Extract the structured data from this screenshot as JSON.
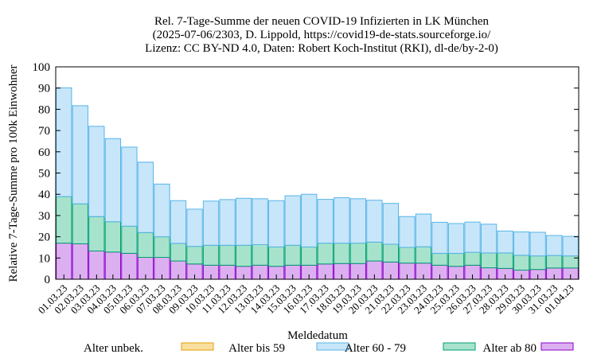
{
  "chart_data": {
    "type": "bar",
    "stacked": true,
    "title_lines": [
      "Rel. 7-Tage-Summe der neuen COVID-19 Infizierten in LK München",
      "(2025-07-06/2303, D. Lippold, https://covid19-de-stats.sourceforge.io/",
      "Lizenz: CC BY-ND 4.0, Daten: Robert Koch-Institut (RKI), dl-de/by-2-0)"
    ],
    "xlabel": "Meldedatum",
    "ylabel": "Relative 7-Tage-Summe pro 100k Einwohner",
    "ylim": [
      0,
      100
    ],
    "yticks": [
      0,
      10,
      20,
      30,
      40,
      50,
      60,
      70,
      80,
      90,
      100
    ],
    "grid": false,
    "legend_position": "bottom",
    "categories": [
      "01.03.23",
      "02.03.23",
      "03.03.23",
      "04.03.23",
      "05.03.23",
      "06.03.23",
      "07.03.23",
      "08.03.23",
      "09.03.23",
      "10.03.23",
      "11.03.23",
      "12.03.23",
      "13.03.23",
      "14.03.23",
      "15.03.23",
      "16.03.23",
      "17.03.23",
      "18.03.23",
      "19.03.23",
      "20.03.23",
      "21.03.23",
      "22.03.23",
      "23.03.23",
      "24.03.23",
      "25.03.23",
      "26.03.23",
      "27.03.23",
      "28.03.23",
      "29.03.23",
      "30.03.23",
      "31.03.23",
      "01.04.23"
    ],
    "series": [
      {
        "name": "Alter ab 80",
        "fill": "#dcb0f0",
        "stroke": "#8b00c9",
        "values": [
          17,
          16.7,
          13.3,
          12.8,
          12.2,
          10.3,
          10.3,
          8.6,
          7.2,
          6.6,
          6.6,
          6.1,
          6.6,
          6.1,
          6.6,
          6.6,
          7.2,
          7.4,
          7.4,
          8.6,
          8.1,
          7.6,
          7.6,
          6.6,
          6.1,
          6.6,
          5.4,
          5.1,
          4.3,
          4.6,
          5.3,
          5.3
        ]
      },
      {
        "name": "Alter 60 - 79",
        "fill": "#a7e3cc",
        "stroke": "#009e73",
        "values": [
          21.9,
          18.8,
          16.2,
          14.3,
          12.8,
          11.7,
          9.7,
          8.3,
          8.3,
          9.4,
          9.4,
          9.9,
          9.7,
          9.1,
          9.4,
          8.6,
          9.8,
          9.6,
          9.6,
          8.9,
          8.4,
          7.4,
          7.7,
          5.6,
          6.1,
          6.1,
          7.0,
          7.3,
          7.0,
          6.4,
          5.9,
          5.7
        ]
      },
      {
        "name": "Alter bis 59",
        "fill": "#c8e6fa",
        "stroke": "#56b4e9",
        "values": [
          51.2,
          46.2,
          42.5,
          39.1,
          37.2,
          33.1,
          24.8,
          20.1,
          17.5,
          20.8,
          21.5,
          22.1,
          21.6,
          21.8,
          23.3,
          24.8,
          20.6,
          21.4,
          20.9,
          19.7,
          19.2,
          14.5,
          15.4,
          14.6,
          14.0,
          14.2,
          13.5,
          10.3,
          11.0,
          11.1,
          9.4,
          9.2
        ]
      },
      {
        "name": "Alter unbek.",
        "fill": "#f8dfa0",
        "stroke": "#e69f00",
        "values": [
          0,
          0,
          0,
          0,
          0,
          0,
          0,
          0,
          0,
          0,
          0,
          0,
          0,
          0,
          0,
          0,
          0,
          0,
          0,
          0,
          0,
          0,
          0,
          0,
          0,
          0,
          0,
          0,
          0,
          0,
          0,
          0
        ]
      }
    ],
    "legend_order": [
      "Alter unbek.",
      "Alter bis 59",
      "Alter 60 - 79",
      "Alter ab 80"
    ]
  }
}
